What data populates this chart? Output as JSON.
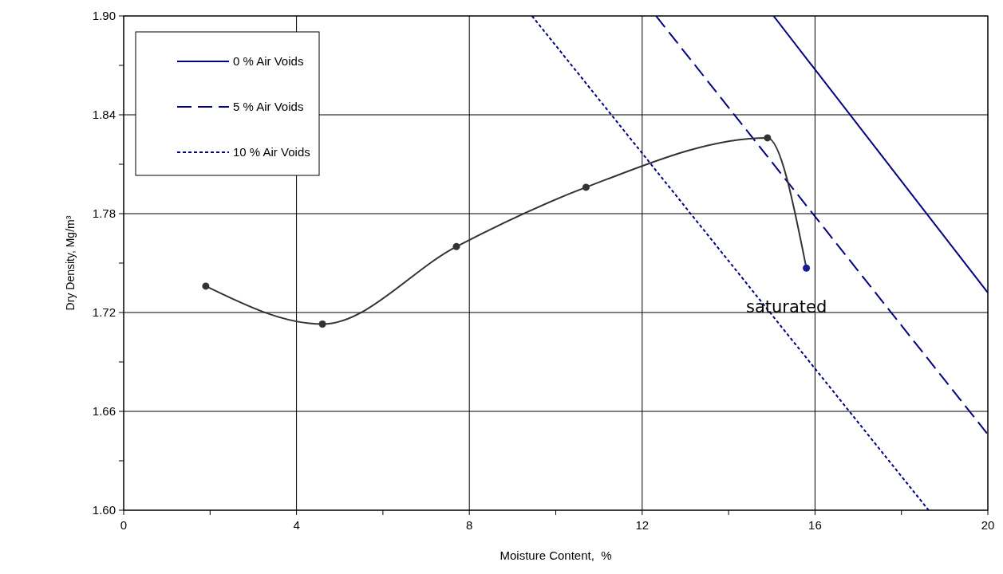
{
  "chart_data": {
    "type": "line",
    "xlabel": "Moisture Content,  %",
    "ylabel": "Dry Density, Mg/m³",
    "xlim": [
      0,
      20
    ],
    "xticks": [
      0,
      {
        "value": 2,
        "label": null
      },
      4,
      {
        "value": 6,
        "label": null
      },
      8,
      {
        "value": 10,
        "label": null
      },
      12,
      {
        "value": 14,
        "label": null
      },
      16,
      {
        "value": 18,
        "label": null
      },
      20
    ],
    "ylim": [
      1.6,
      1.9
    ],
    "yticks": [
      {
        "value": 1.6,
        "label": "1.60"
      },
      {
        "value": 1.63,
        "label": null
      },
      {
        "value": 1.66,
        "label": "1.66"
      },
      {
        "value": 1.69,
        "label": null
      },
      {
        "value": 1.72,
        "label": "1.72"
      },
      {
        "value": 1.75,
        "label": null
      },
      {
        "value": 1.78,
        "label": "1.78"
      },
      {
        "value": 1.81,
        "label": null
      },
      {
        "value": 1.84,
        "label": "1.84"
      },
      {
        "value": 1.87,
        "label": null
      },
      {
        "value": 1.9,
        "label": "1.90"
      }
    ],
    "grid": true,
    "legend": "top left",
    "series": [
      {
        "name": "0 % Air Voids",
        "color": "#000080",
        "line_style": "solid",
        "marker": "none",
        "x": [
          15.04,
          20
        ],
        "values": [
          1.9,
          1.732
        ]
      },
      {
        "name": "5 % Air Voids",
        "color": "#000080",
        "line_style": "dashed",
        "marker": "none",
        "x": [
          12.32,
          20
        ],
        "values": [
          1.9,
          1.646
        ]
      },
      {
        "name": "10 % Air Voids",
        "color": "#000080",
        "line_style": "dotted",
        "marker": "none",
        "x": [
          9.45,
          18.63
        ],
        "values": [
          1.9,
          1.6
        ]
      },
      {
        "color": "#333333",
        "line_style": "solid",
        "marker": "circle",
        "colors": [
          "#333333",
          "#333333",
          "#333333",
          "#333333",
          "#333333",
          "#1a1a99"
        ],
        "x": [
          1.9,
          4.6,
          7.7,
          10.7,
          14.9,
          15.8
        ],
        "values": [
          1.736,
          1.713,
          1.76,
          1.796,
          1.826,
          1.747
        ]
      }
    ],
    "annotations": [
      "saturated"
    ]
  }
}
